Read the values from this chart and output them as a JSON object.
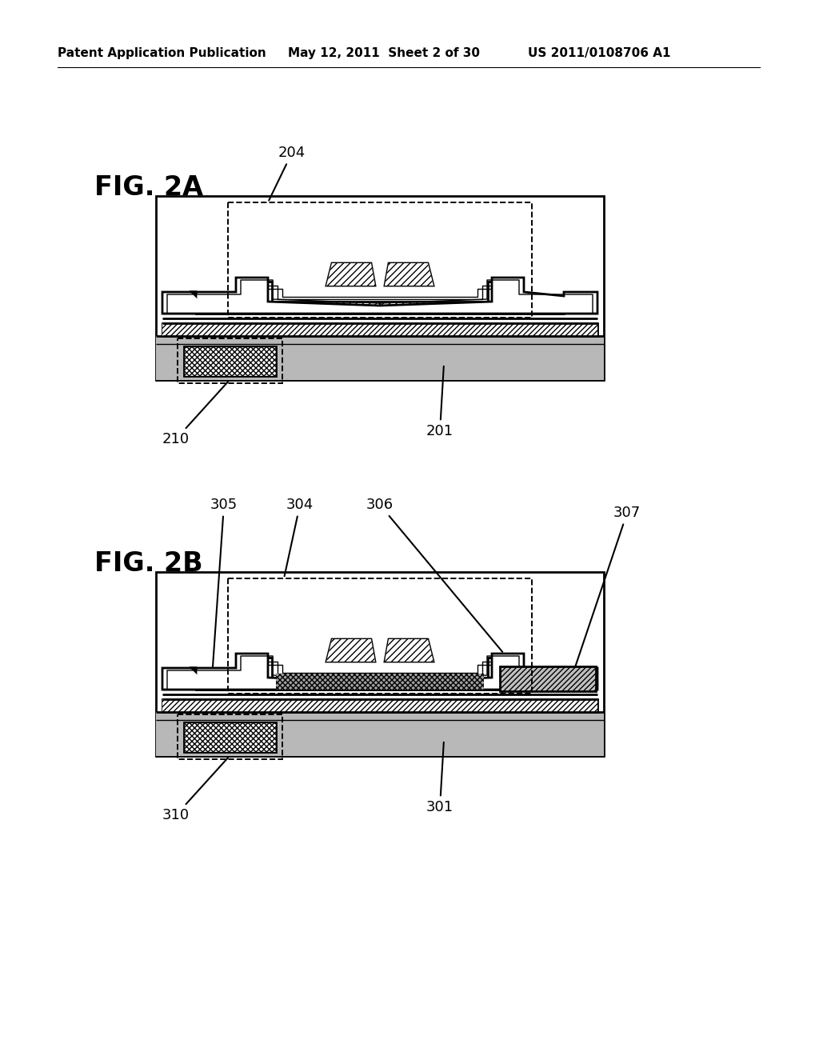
{
  "bg_color": "#ffffff",
  "header_left": "Patent Application Publication",
  "header_mid": "May 12, 2011  Sheet 2 of 30",
  "header_right": "US 2011/0108706 A1",
  "fig2a_label": "FIG. 2A",
  "fig2b_label": "FIG. 2B",
  "header_fontsize": 11,
  "figlabel_fontsize": 24,
  "annot_fontsize": 13,
  "lw": 2.0,
  "lw_thin": 1.0,
  "lw_dash": 1.4
}
